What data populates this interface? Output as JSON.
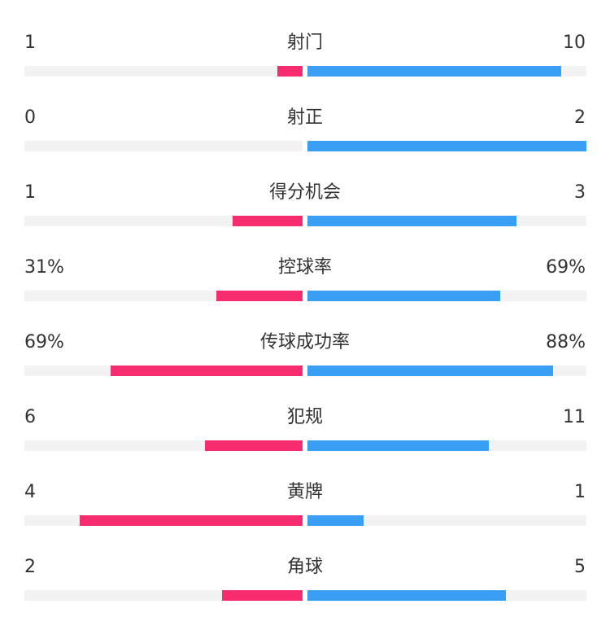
{
  "chart_data": {
    "type": "bar",
    "colors": {
      "left": "#f72c6f",
      "right": "#3a9ef4",
      "track": "#f2f2f2"
    },
    "rows": [
      {
        "label": "射门",
        "left": {
          "display": "1",
          "value": 1,
          "share": 0.09
        },
        "right": {
          "display": "10",
          "value": 10,
          "share": 0.91
        }
      },
      {
        "label": "射正",
        "left": {
          "display": "0",
          "value": 0,
          "share": 0.0
        },
        "right": {
          "display": "2",
          "value": 2,
          "share": 1.0
        }
      },
      {
        "label": "得分机会",
        "left": {
          "display": "1",
          "value": 1,
          "share": 0.25
        },
        "right": {
          "display": "3",
          "value": 3,
          "share": 0.75
        }
      },
      {
        "label": "控球率",
        "left": {
          "display": "31%",
          "value": 31,
          "share": 0.31
        },
        "right": {
          "display": "69%",
          "value": 69,
          "share": 0.69
        }
      },
      {
        "label": "传球成功率",
        "left": {
          "display": "69%",
          "value": 69,
          "share": 0.69
        },
        "right": {
          "display": "88%",
          "value": 88,
          "share": 0.88
        }
      },
      {
        "label": "犯规",
        "left": {
          "display": "6",
          "value": 6,
          "share": 0.35
        },
        "right": {
          "display": "11",
          "value": 11,
          "share": 0.65
        }
      },
      {
        "label": "黄牌",
        "left": {
          "display": "4",
          "value": 4,
          "share": 0.8
        },
        "right": {
          "display": "1",
          "value": 1,
          "share": 0.2
        }
      },
      {
        "label": "角球",
        "left": {
          "display": "2",
          "value": 2,
          "share": 0.29
        },
        "right": {
          "display": "5",
          "value": 5,
          "share": 0.71
        }
      }
    ]
  }
}
